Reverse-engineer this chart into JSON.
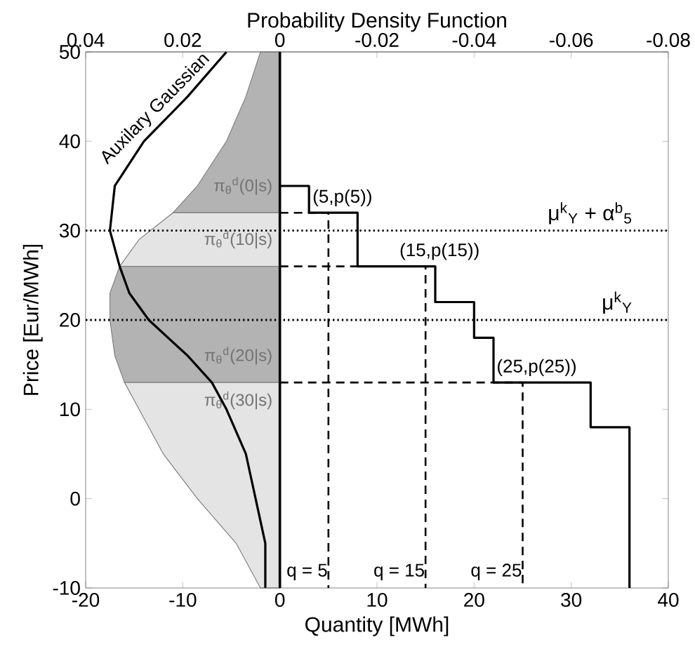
{
  "chart_data": {
    "type": "line",
    "xlabel": "Quantity [MWh]",
    "ylabel": "Price [Eur/MWh]",
    "x2label": "Probability Density Function",
    "xlim": [
      -20,
      40
    ],
    "xticks": [
      -20,
      -10,
      0,
      10,
      20,
      30,
      40
    ],
    "ylim": [
      -10,
      50
    ],
    "yticks": [
      -10,
      0,
      10,
      20,
      30,
      40,
      50
    ],
    "x2lim": [
      0.04,
      -0.08
    ],
    "x2ticks": [
      0.04,
      0.02,
      0,
      -0.02,
      -0.04,
      -0.06,
      -0.08
    ],
    "series": [
      {
        "type": "area",
        "axis": "x2",
        "name": "π$_{θ}$$^{d}$(0|s)",
        "color": "#b3b3b3",
        "x": [
          0,
          0.022,
          0.017,
          0.011,
          0.007,
          0.004,
          0
        ],
        "values": [
          32,
          32,
          35,
          40,
          45,
          50,
          50
        ]
      },
      {
        "type": "area",
        "axis": "x2",
        "name": "π$_{θ}$$^{d}$(10|s)",
        "color": "#e4e4e4",
        "x": [
          0,
          0.033,
          0.029,
          0.022,
          0
        ],
        "values": [
          26,
          26,
          29,
          32,
          32
        ]
      },
      {
        "type": "area",
        "axis": "x2",
        "name": "π$_{θ}$$^{d}$(20|s)",
        "color": "#b3b3b3",
        "x": [
          0,
          0.032,
          0.034,
          0.035,
          0.035,
          0.033,
          0
        ],
        "values": [
          13,
          13,
          16,
          20,
          23,
          26,
          26
        ]
      },
      {
        "type": "area",
        "axis": "x2",
        "name": "π$_{θ}$$^{d}$(30|s)",
        "color": "#e4e4e4",
        "x": [
          0,
          0.004,
          0.009,
          0.017,
          0.024,
          0.029,
          0.032,
          0
        ],
        "values": [
          -10,
          -10,
          -5,
          0,
          5,
          10,
          13,
          13
        ]
      },
      {
        "type": "line",
        "axis": "x2",
        "name": "Auxilary Gaussian",
        "color": "#000000",
        "x": [
          0.003,
          0.003,
          0.005,
          0.007,
          0.011,
          0.014,
          0.019,
          0.027,
          0.031,
          0.033,
          0.035,
          0.034,
          0.028,
          0.019,
          0.011
        ],
        "values": [
          -10,
          -5,
          0,
          5,
          10,
          13,
          16,
          20,
          23,
          26,
          30,
          35,
          40,
          45,
          50
        ]
      },
      {
        "type": "step",
        "color": "#000000",
        "x": [
          0,
          3,
          8,
          16,
          20,
          22,
          32,
          36
        ],
        "values": [
          35,
          32,
          26,
          22,
          18,
          13,
          8,
          -10
        ]
      },
      {
        "type": "line",
        "color": "#000000",
        "line_style": "dashed",
        "x": [
          0,
          5,
          5
        ],
        "values": [
          32,
          32,
          -10
        ]
      },
      {
        "type": "line",
        "color": "#000000",
        "line_style": "dashed",
        "x": [
          0,
          15,
          15
        ],
        "values": [
          26,
          26,
          -10
        ]
      },
      {
        "type": "line",
        "color": "#000000",
        "line_style": "dashed",
        "x": [
          0,
          25,
          25
        ],
        "values": [
          13,
          13,
          -10
        ]
      }
    ],
    "ref_lines": [
      {
        "axis": "y",
        "value": 30,
        "label": "μ$^{k}$$_{Y}$ + α$^{b}$$_{5}$",
        "line_style": "dotted",
        "color": "#000000"
      },
      {
        "axis": "y",
        "value": 20,
        "label": "μ$^{k}$$_{Y}$",
        "line_style": "dotted",
        "color": "#000000"
      },
      {
        "axis": "x",
        "value": 0,
        "line_style": "solid",
        "color": "#000000"
      }
    ],
    "annotations": [
      {
        "text": "(5,p(5))",
        "x": 5,
        "y": 32
      },
      {
        "text": "(15,p(15))",
        "x": 15,
        "y": 26
      },
      {
        "text": "(25,p(25))",
        "x": 25,
        "y": 13
      },
      {
        "text": "q = 5",
        "x": 5,
        "y": -10
      },
      {
        "text": "q = 15",
        "x": 15,
        "y": -10
      },
      {
        "text": "q = 25",
        "x": 25,
        "y": -10
      }
    ]
  }
}
